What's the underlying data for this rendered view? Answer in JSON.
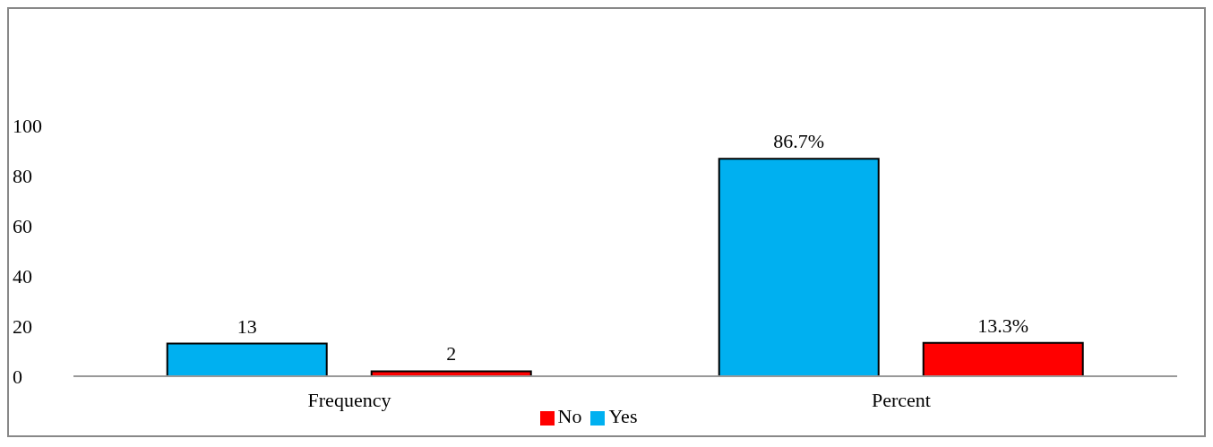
{
  "chart_data": {
    "type": "bar",
    "categories": [
      "Frequency",
      "Percent"
    ],
    "series": [
      {
        "name": "Yes",
        "color": "#00b0f0",
        "values": [
          13,
          86.7
        ],
        "value_labels": [
          "13",
          "86.7%"
        ]
      },
      {
        "name": "No",
        "color": "#ff0000",
        "values": [
          2,
          13.3
        ],
        "value_labels": [
          "2",
          "13.3%"
        ]
      }
    ],
    "ylim": [
      0,
      100
    ],
    "yticks": [
      0,
      20,
      40,
      60,
      80,
      100
    ],
    "grid": false,
    "legend": "bottom"
  }
}
